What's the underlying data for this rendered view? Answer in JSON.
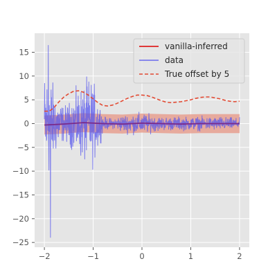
{
  "chart_data": {
    "type": "line",
    "title": "",
    "xlabel": "",
    "ylabel": "",
    "xlim": [
      -2.2,
      2.2
    ],
    "ylim": [
      -26,
      19
    ],
    "x_ticks": [
      -2,
      -1,
      0,
      1,
      2
    ],
    "y_ticks": [
      -25,
      -20,
      -15,
      -10,
      -5,
      0,
      5,
      10,
      15
    ],
    "grid": true,
    "style": "ggplot",
    "legend_position": "top-right",
    "colors": {
      "panel_bg": "#e5e5e5",
      "grid": "#ffffff",
      "inferred": "#dd0000",
      "band": "#e8a090",
      "data": "#5555ee",
      "true_offset": "#e24a33",
      "mean_overlap": "#7a2a8a"
    },
    "series": [
      {
        "name": "vanilla-inferred",
        "kind": "mean",
        "x": [
          -2,
          -1.6,
          -1.2,
          -0.8,
          -0.4,
          0,
          0.4,
          0.8,
          1.2,
          1.6,
          2
        ],
        "values": [
          -0.3,
          -0.1,
          0.2,
          0.0,
          -0.1,
          0.1,
          0.0,
          -0.1,
          0.0,
          0.0,
          0.0
        ]
      },
      {
        "name": "vanilla-inferred band",
        "kind": "band",
        "x": [
          -2,
          -1.6,
          -1.2,
          -0.8,
          -0.4,
          0,
          0.4,
          0.8,
          1.2,
          1.6,
          2
        ],
        "upper": [
          1.7,
          1.9,
          2.2,
          2.0,
          1.9,
          2.1,
          2.0,
          1.9,
          2.0,
          2.0,
          2.0
        ],
        "lower": [
          -2.3,
          -2.1,
          -1.8,
          -2.0,
          -2.1,
          -1.9,
          -2.0,
          -2.1,
          -2.0,
          -2.0,
          -2.0
        ]
      },
      {
        "name": "data",
        "kind": "noisy",
        "envelope": {
          "x": [
            -2.0,
            -1.9,
            -1.8,
            -1.7,
            -1.6,
            -1.5,
            -1.4,
            -1.3,
            -1.2,
            -1.1,
            -1.0,
            -0.9,
            -0.8,
            -0.6,
            -0.4,
            -0.2,
            0.0,
            0.2,
            0.4,
            0.6,
            0.8,
            1.0,
            1.2,
            1.4,
            1.6,
            1.8,
            2.0
          ],
          "amplitude": [
            15,
            16,
            10,
            7,
            5,
            6,
            8,
            10,
            11,
            13,
            12,
            8,
            2,
            1.5,
            2.5,
            3,
            3.2,
            2.5,
            2.0,
            2.0,
            2.0,
            2.0,
            2.0,
            2.0,
            2.0,
            1.8,
            1.6
          ]
        },
        "extremes": {
          "max": 16.5,
          "min": -24
        }
      },
      {
        "name": "True offset by 5",
        "kind": "dashed",
        "x": [
          -2.0,
          -1.9,
          -1.8,
          -1.7,
          -1.6,
          -1.5,
          -1.4,
          -1.3,
          -1.2,
          -1.1,
          -1.0,
          -0.9,
          -0.8,
          -0.7,
          -0.6,
          -0.5,
          -0.4,
          -0.3,
          -0.2,
          -0.1,
          0.0,
          0.1,
          0.2,
          0.3,
          0.4,
          0.5,
          0.6,
          0.7,
          0.8,
          0.9,
          1.0,
          1.1,
          1.2,
          1.3,
          1.4,
          1.5,
          1.6,
          1.7,
          1.8,
          1.9,
          2.0
        ],
        "values": [
          2.6,
          2.6,
          3.4,
          4.6,
          5.6,
          6.3,
          6.8,
          6.9,
          6.6,
          6.0,
          5.2,
          4.4,
          3.8,
          3.7,
          3.9,
          4.3,
          4.8,
          5.3,
          5.7,
          6.0,
          6.0,
          5.9,
          5.6,
          5.2,
          4.8,
          4.5,
          4.4,
          4.5,
          4.6,
          4.8,
          5.0,
          5.3,
          5.5,
          5.6,
          5.6,
          5.4,
          5.2,
          4.9,
          4.7,
          4.6,
          4.7
        ]
      }
    ]
  }
}
